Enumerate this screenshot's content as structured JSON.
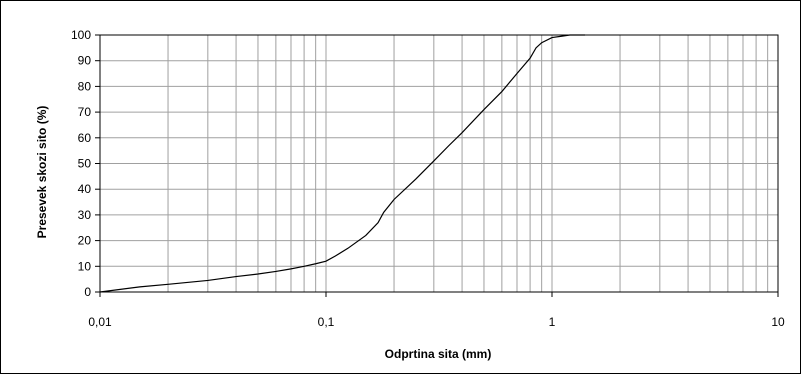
{
  "chart_data": {
    "type": "line",
    "xlabel": "Odprtina sita  (mm)",
    "ylabel": "Presevek skozi sito (%)",
    "x_scale": "log",
    "xlim": [
      0.01,
      10
    ],
    "ylim": [
      0,
      100
    ],
    "x_tick_labels": [
      "0,01",
      "0,1",
      "1",
      "10"
    ],
    "y_tick_labels": [
      "0",
      "10",
      "20",
      "30",
      "40",
      "50",
      "60",
      "70",
      "80",
      "90",
      "100"
    ],
    "grid": true,
    "legend": "none",
    "line_color": "#000000",
    "grid_color": "#a0a0a0",
    "series": [
      {
        "x": [
          0.01,
          0.015,
          0.02,
          0.03,
          0.04,
          0.05,
          0.06,
          0.07,
          0.08,
          0.09,
          0.1,
          0.11,
          0.125,
          0.15,
          0.17,
          0.18,
          0.2,
          0.25,
          0.3,
          0.35,
          0.4,
          0.5,
          0.6,
          0.7,
          0.8,
          0.85,
          0.9,
          1.0,
          1.1,
          1.2,
          1.4
        ],
        "y": [
          0,
          2,
          3,
          4.5,
          6,
          7,
          8,
          9,
          10,
          11,
          12,
          14,
          17,
          22,
          27,
          31,
          36,
          44,
          51,
          57,
          62,
          71,
          78,
          85,
          91,
          95,
          97,
          99,
          99.5,
          100,
          100
        ]
      }
    ]
  }
}
